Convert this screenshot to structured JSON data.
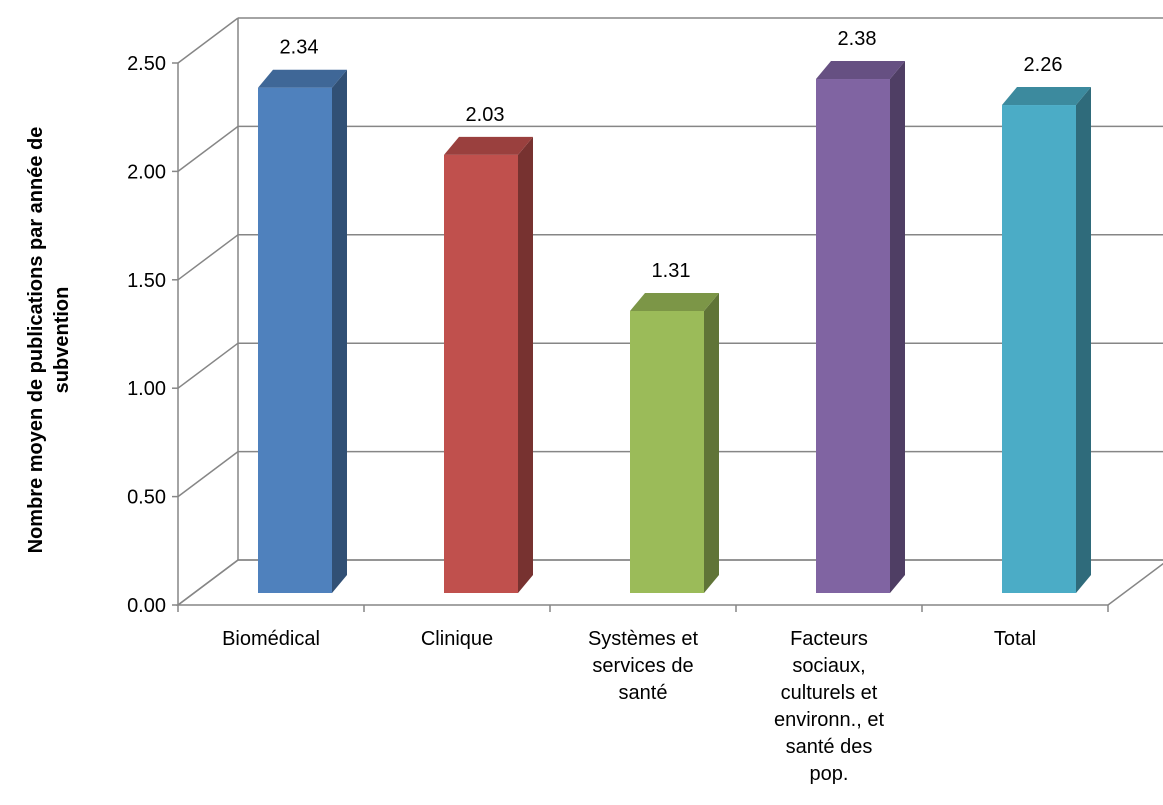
{
  "chart_data": {
    "type": "bar",
    "style": "3d-column",
    "ylabel": "Nombre moyen de publications par année de subvention",
    "ylim": [
      0,
      2.5
    ],
    "ytick_step": 0.5,
    "ytick_labels": [
      "0.00",
      "0.50",
      "1.00",
      "1.50",
      "2.00",
      "2.50"
    ],
    "grid": true,
    "legend": "none",
    "categories": [
      "Biomédical",
      "Clinique",
      "Systèmes et services de santé",
      "Facteurs sociaux, culturels et environn., et santé des pop.",
      "Total"
    ],
    "values": [
      2.34,
      2.03,
      1.31,
      2.38,
      2.26
    ],
    "value_labels": [
      "2.34",
      "2.03",
      "1.31",
      "2.38",
      "2.26"
    ],
    "colors": [
      "#4f81bd",
      "#c0504d",
      "#9bbb59",
      "#8064a2",
      "#4bacc6"
    ]
  }
}
